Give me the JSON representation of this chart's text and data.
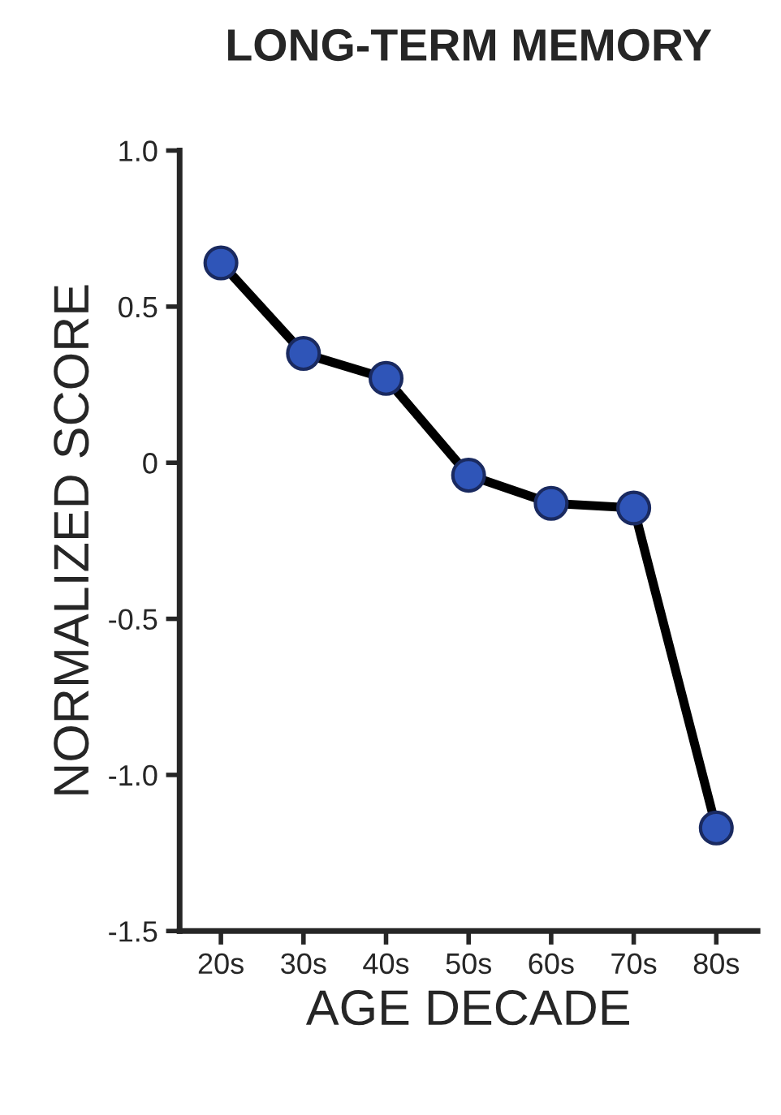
{
  "chart_data": {
    "type": "line",
    "title": "LONG-TERM MEMORY",
    "xlabel": "AGE DECADE",
    "ylabel": "NORMALIZED SCORE",
    "categories": [
      "20s",
      "30s",
      "40s",
      "50s",
      "60s",
      "70s",
      "80s"
    ],
    "series": [
      {
        "color": "#2f55b8",
        "values": [
          0.64,
          0.35,
          0.27,
          -0.04,
          -0.13,
          -0.145,
          -1.17
        ]
      }
    ],
    "ylim": [
      -1.5,
      1.0
    ],
    "yticks": [
      {
        "value": 1.0,
        "label": "1.0"
      },
      {
        "value": 0.5,
        "label": "0.5"
      },
      0,
      {
        "value": -0.5,
        "label": "-0.5"
      },
      {
        "value": -1.0,
        "label": "-1.0"
      },
      {
        "value": -1.5,
        "label": "-1.5"
      }
    ],
    "marker": "circle",
    "line_style": "solid",
    "grid": false,
    "legend": false
  }
}
